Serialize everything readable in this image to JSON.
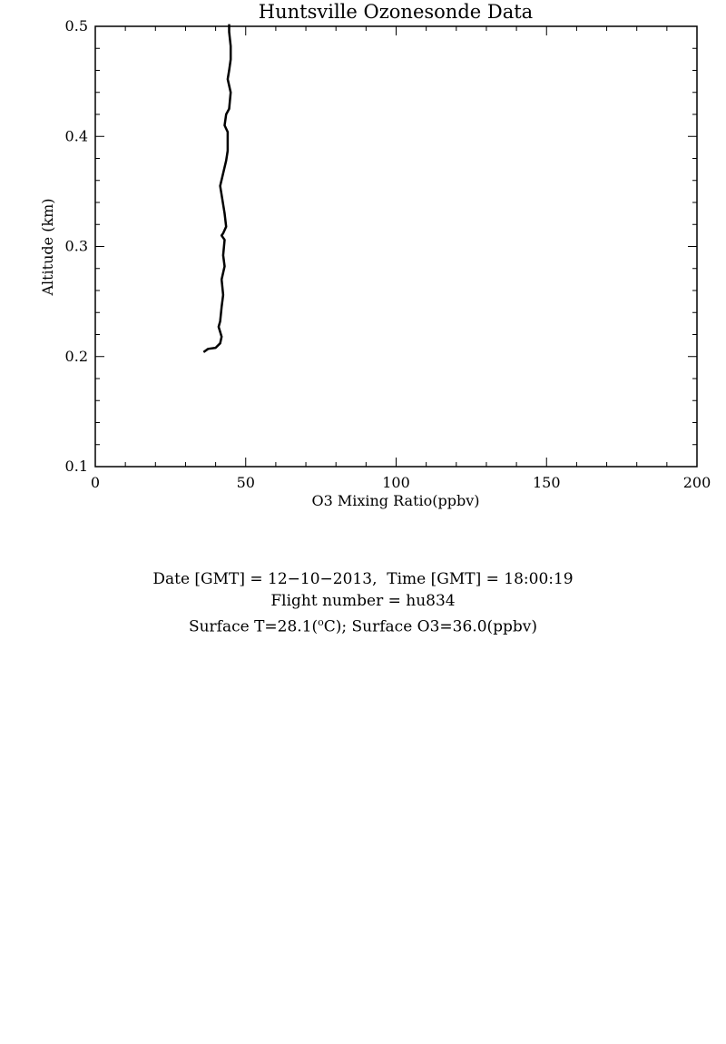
{
  "chart_data": {
    "type": "line",
    "title": "Huntsville Ozonesonde Data",
    "xlabel": "O3 Mixing Ratio(ppbv)",
    "ylabel": "Altitude (km)",
    "xlim": [
      0,
      200
    ],
    "ylim": [
      0.1,
      0.5
    ],
    "x_ticks": [
      0,
      50,
      100,
      150,
      200
    ],
    "x_tick_labels": [
      "0",
      "50",
      "100",
      "150",
      "200"
    ],
    "y_ticks": [
      0.1,
      0.2,
      0.3,
      0.4,
      0.5
    ],
    "y_tick_labels": [
      "0.1",
      "0.2",
      "0.3",
      "0.4",
      "0.5"
    ],
    "grid": false,
    "line_color": "#000000",
    "series": [
      {
        "x": [
          36.0,
          37.5,
          40.0,
          41.5,
          42.0,
          41.0,
          41.5,
          42.0,
          42.5,
          42.0,
          43.0,
          42.5,
          43.0,
          42.0,
          42.5,
          43.5,
          43.0,
          41.5,
          43.5,
          44.0,
          44.0,
          44.0,
          43.0,
          43.5,
          44.5,
          45.0,
          44.0,
          44.5,
          45.0,
          45.0,
          44.5,
          44.5
        ],
        "y": [
          0.204,
          0.207,
          0.208,
          0.212,
          0.218,
          0.227,
          0.232,
          0.245,
          0.256,
          0.27,
          0.282,
          0.292,
          0.306,
          0.31,
          0.312,
          0.318,
          0.33,
          0.355,
          0.378,
          0.387,
          0.395,
          0.404,
          0.41,
          0.42,
          0.425,
          0.44,
          0.452,
          0.46,
          0.47,
          0.482,
          0.495,
          0.502
        ]
      }
    ]
  },
  "info": {
    "line1": "Date [GMT] = 12−10−2013,  Time [GMT] = 18:00:19",
    "line2": "Flight number = hu834",
    "line3_prefix": "Surface T=28.1(",
    "line3_sup": "o",
    "line3_suffix": "C); Surface O3=36.0(ppbv)"
  }
}
